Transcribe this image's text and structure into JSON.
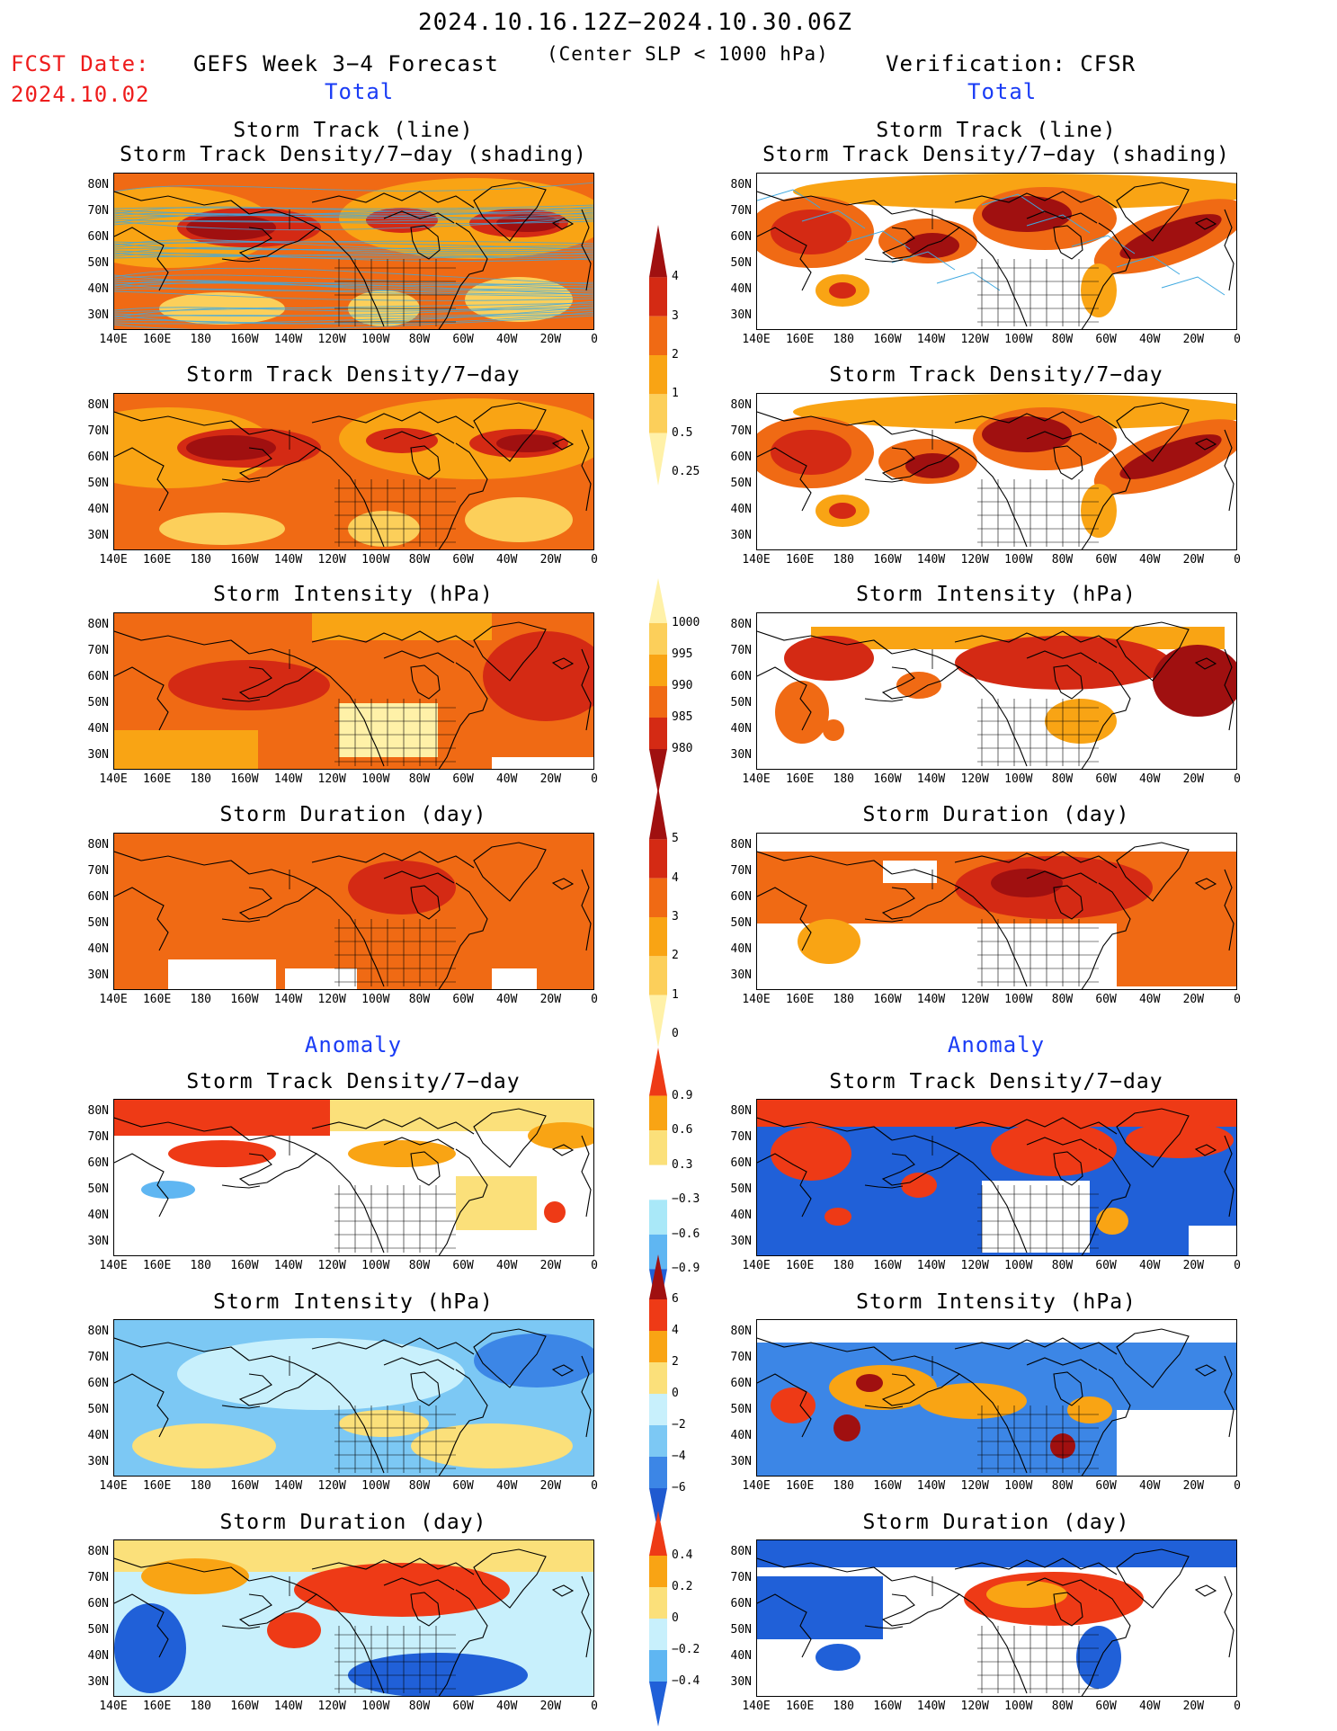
{
  "header": {
    "period": "2024.10.16.12Z−2024.10.30.06Z",
    "subtitle": "(Center SLP < 1000 hPa)",
    "fcst_label": "FCST Date:",
    "fcst_date": "2024.10.02",
    "left_title": "GEFS Week 3−4 Forecast",
    "right_title": "Verification: CFSR",
    "total_left": "Total",
    "total_right": "Total",
    "anomaly_left": "Anomaly",
    "anomaly_right": "Anomaly"
  },
  "panels": {
    "track_line": "Storm Track (line)",
    "track_shading": "Storm Track Density/7−day (shading)",
    "density": "Storm Track Density/7−day",
    "intensity": "Storm Intensity (hPa)",
    "duration": "Storm Duration (day)"
  },
  "axes": {
    "lat_labels": [
      "80N",
      "70N",
      "60N",
      "50N",
      "40N",
      "30N"
    ],
    "lon_labels": [
      "140E",
      "160E",
      "180",
      "160W",
      "140W",
      "120W",
      "100W",
      "80W",
      "60W",
      "40W",
      "20W",
      "0"
    ]
  },
  "colorbars": {
    "density_total": {
      "labels": [
        "4",
        "3",
        "2",
        "1",
        "0.5",
        "0.25"
      ],
      "colors": [
        "#a01010",
        "#d42a14",
        "#f06a14",
        "#f9a414",
        "#fccf5a",
        "#fff1a8"
      ]
    },
    "intensity_total": {
      "labels": [
        "1000",
        "995",
        "990",
        "985",
        "980"
      ],
      "colors": [
        "#fff1a8",
        "#fccf5a",
        "#f9a414",
        "#f06a14",
        "#d42a14",
        "#a01010"
      ]
    },
    "duration_total": {
      "labels": [
        "5",
        "4",
        "3",
        "2",
        "1",
        "0"
      ],
      "colors": [
        "#a01010",
        "#d42a14",
        "#f06a14",
        "#f9a414",
        "#fccf5a",
        "#fff1a8"
      ]
    },
    "density_anom": {
      "labels": [
        "0.9",
        "0.6",
        "0.3",
        "−0.3",
        "−0.6",
        "−0.9"
      ],
      "colors": [
        "#ee3a16",
        "#f9a414",
        "#fbe07a",
        "#ffffff",
        "#a9e8f8",
        "#5fb6f2",
        "#2060d8"
      ]
    },
    "intensity_anom": {
      "labels": [
        "6",
        "4",
        "2",
        "0",
        "−2",
        "−4",
        "−6"
      ],
      "colors": [
        "#a01010",
        "#ee3a16",
        "#f9a414",
        "#fbe07a",
        "#c8f0fc",
        "#7cc8f4",
        "#3c86e6",
        "#1f5ad0"
      ]
    },
    "duration_anom": {
      "labels": [
        "0.4",
        "0.2",
        "0",
        "−0.2",
        "−0.4"
      ],
      "colors": [
        "#ee3a16",
        "#f9a414",
        "#fbe07a",
        "#c8f0fc",
        "#5fb6f2",
        "#2060d8"
      ]
    }
  }
}
